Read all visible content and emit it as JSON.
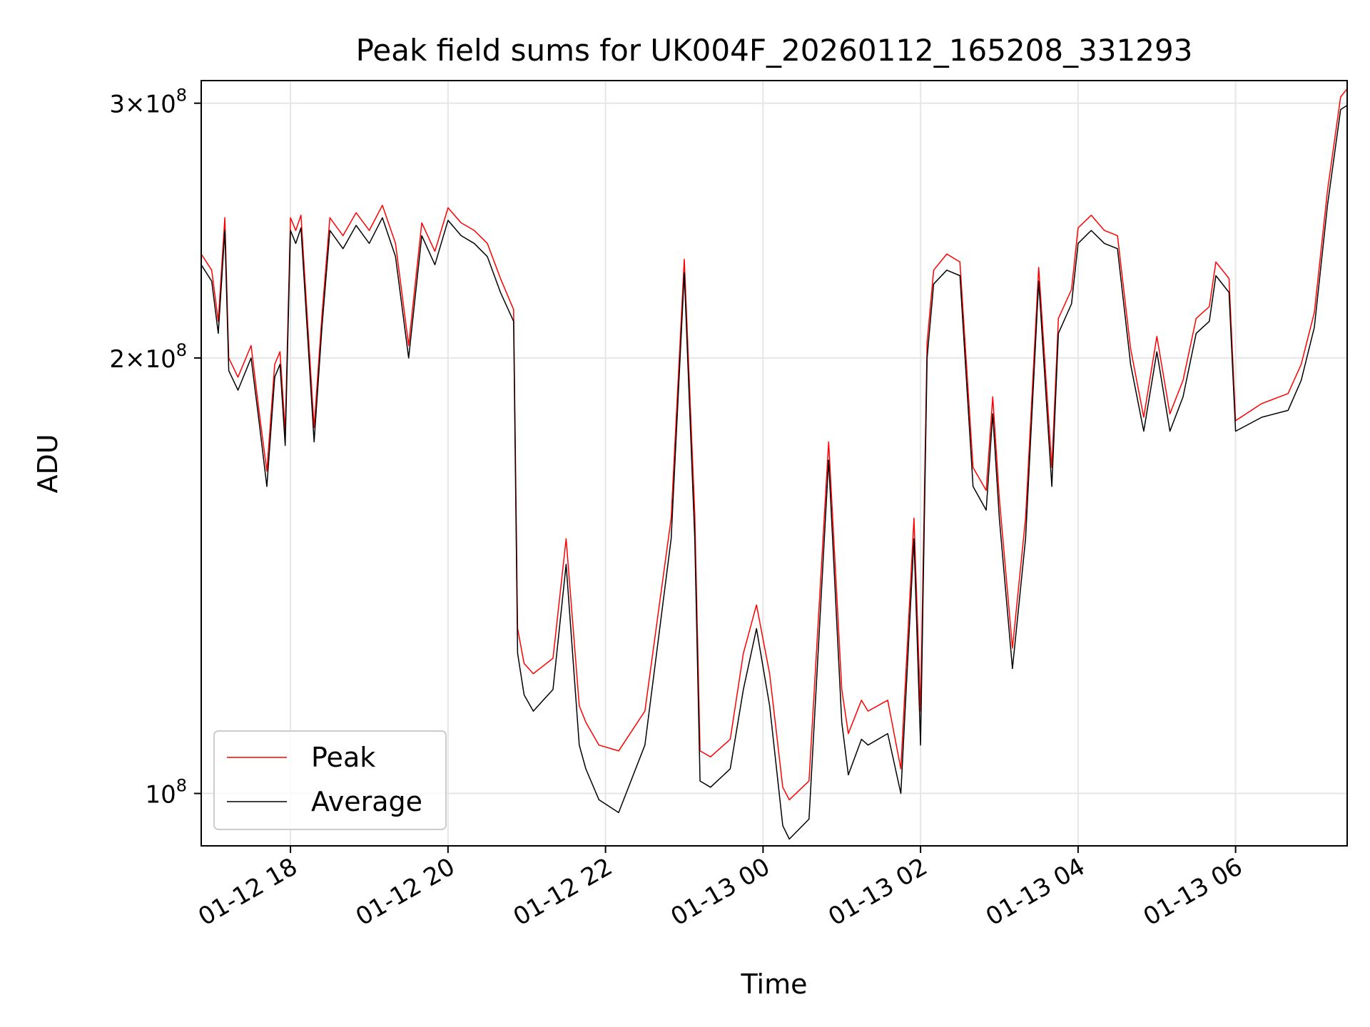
{
  "chart_data": {
    "type": "line",
    "title": "Peak field sums for UK004F_20260112_165208_331293",
    "xlabel": "Time",
    "ylabel": "ADU",
    "x_range": [
      "2026-01-12 16:52",
      "2026-01-13 07:25"
    ],
    "y_scale": "log",
    "y_range": [
      92000000,
      311000000
    ],
    "x_ticks": [
      {
        "label": "01-12 18",
        "value": "2026-01-12 18:00"
      },
      {
        "label": "01-12 20",
        "value": "2026-01-12 20:00"
      },
      {
        "label": "01-12 22",
        "value": "2026-01-12 22:00"
      },
      {
        "label": "01-13 00",
        "value": "2026-01-13 00:00"
      },
      {
        "label": "01-13 02",
        "value": "2026-01-13 02:00"
      },
      {
        "label": "01-13 04",
        "value": "2026-01-13 04:00"
      },
      {
        "label": "01-13 06",
        "value": "2026-01-13 06:00"
      }
    ],
    "y_ticks": [
      {
        "mantissa": "",
        "exponent": "8",
        "value": 100000000
      },
      {
        "mantissa": "2",
        "exponent": "8",
        "value": 200000000
      },
      {
        "mantissa": "3",
        "exponent": "8",
        "value": 300000000
      }
    ],
    "grid": true,
    "legend_position": "lower-left",
    "series": [
      {
        "name": "Peak",
        "color": "#ff0000"
      },
      {
        "name": "Average",
        "color": "#000000"
      }
    ],
    "x": [
      "2026-01-12 16:52",
      "2026-01-12 17:00",
      "2026-01-12 17:05",
      "2026-01-12 17:10",
      "2026-01-12 17:13",
      "2026-01-12 17:20",
      "2026-01-12 17:30",
      "2026-01-12 17:36",
      "2026-01-12 17:42",
      "2026-01-12 17:48",
      "2026-01-12 17:52",
      "2026-01-12 17:56",
      "2026-01-12 18:00",
      "2026-01-12 18:04",
      "2026-01-12 18:08",
      "2026-01-12 18:18",
      "2026-01-12 18:24",
      "2026-01-12 18:30",
      "2026-01-12 18:40",
      "2026-01-12 18:50",
      "2026-01-12 19:00",
      "2026-01-12 19:10",
      "2026-01-12 19:20",
      "2026-01-12 19:30",
      "2026-01-12 19:40",
      "2026-01-12 19:50",
      "2026-01-12 20:00",
      "2026-01-12 20:10",
      "2026-01-12 20:20",
      "2026-01-12 20:30",
      "2026-01-12 20:40",
      "2026-01-12 20:50",
      "2026-01-12 20:53",
      "2026-01-12 20:58",
      "2026-01-12 21:05",
      "2026-01-12 21:20",
      "2026-01-12 21:30",
      "2026-01-12 21:40",
      "2026-01-12 21:45",
      "2026-01-12 21:55",
      "2026-01-12 22:10",
      "2026-01-12 22:30",
      "2026-01-12 22:50",
      "2026-01-12 23:00",
      "2026-01-12 23:08",
      "2026-01-12 23:12",
      "2026-01-12 23:20",
      "2026-01-12 23:35",
      "2026-01-12 23:45",
      "2026-01-12 23:55",
      "2026-01-13 00:05",
      "2026-01-13 00:15",
      "2026-01-13 00:20",
      "2026-01-13 00:35",
      "2026-01-13 00:50",
      "2026-01-13 01:00",
      "2026-01-13 01:05",
      "2026-01-13 01:15",
      "2026-01-13 01:20",
      "2026-01-13 01:35",
      "2026-01-13 01:45",
      "2026-01-13 01:55",
      "2026-01-13 02:00",
      "2026-01-13 02:05",
      "2026-01-13 02:10",
      "2026-01-13 02:20",
      "2026-01-13 02:30",
      "2026-01-13 02:40",
      "2026-01-13 02:50",
      "2026-01-13 02:55",
      "2026-01-13 03:00",
      "2026-01-13 03:10",
      "2026-01-13 03:20",
      "2026-01-13 03:30",
      "2026-01-13 03:40",
      "2026-01-13 03:45",
      "2026-01-13 03:55",
      "2026-01-13 04:00",
      "2026-01-13 04:10",
      "2026-01-13 04:20",
      "2026-01-13 04:30",
      "2026-01-13 04:40",
      "2026-01-13 04:50",
      "2026-01-13 05:00",
      "2026-01-13 05:10",
      "2026-01-13 05:20",
      "2026-01-13 05:30",
      "2026-01-13 05:40",
      "2026-01-13 05:45",
      "2026-01-13 05:55",
      "2026-01-13 06:00",
      "2026-01-13 06:20",
      "2026-01-13 06:40",
      "2026-01-13 06:50",
      "2026-01-13 07:00",
      "2026-01-13 07:10",
      "2026-01-13 07:20",
      "2026-01-13 07:25"
    ],
    "average": [
      232000000,
      226000000,
      208000000,
      245000000,
      196000000,
      190000000,
      200000000,
      181000000,
      163000000,
      194000000,
      198000000,
      174000000,
      245000000,
      240000000,
      246000000,
      175000000,
      210000000,
      245000000,
      238000000,
      247000000,
      240000000,
      250000000,
      235000000,
      200000000,
      243000000,
      232000000,
      249000000,
      243000000,
      240000000,
      235000000,
      222000000,
      212000000,
      125000000,
      117000000,
      114000000,
      118000000,
      144000000,
      108000000,
      104000000,
      99000000,
      97000000,
      108000000,
      150000000,
      229000000,
      150000000,
      102000000,
      101000000,
      104000000,
      118000000,
      130000000,
      115000000,
      95000000,
      93000000,
      96000000,
      170000000,
      112000000,
      103000000,
      109000000,
      108000000,
      110000000,
      100000000,
      150000000,
      108000000,
      200000000,
      225000000,
      230000000,
      228000000,
      163000000,
      157000000,
      183000000,
      155000000,
      122000000,
      150000000,
      226000000,
      163000000,
      208000000,
      218000000,
      240000000,
      245000000,
      240000000,
      238000000,
      198000000,
      178000000,
      202000000,
      178000000,
      188000000,
      208000000,
      212000000,
      228000000,
      222000000,
      178000000,
      182000000,
      184000000,
      193000000,
      210000000,
      255000000,
      297000000,
      299000000
    ],
    "peak": [
      236000000,
      230000000,
      212000000,
      250000000,
      200000000,
      194000000,
      204000000,
      184000000,
      167000000,
      198000000,
      202000000,
      178000000,
      250000000,
      245000000,
      251000000,
      179000000,
      214000000,
      250000000,
      243000000,
      252000000,
      245000000,
      255000000,
      240000000,
      204000000,
      248000000,
      237000000,
      254000000,
      248000000,
      245000000,
      240000000,
      227000000,
      216000000,
      130000000,
      123000000,
      121000000,
      124000000,
      150000000,
      115000000,
      112000000,
      108000000,
      107000000,
      114000000,
      155000000,
      234000000,
      156000000,
      107000000,
      106000000,
      109000000,
      125000000,
      135000000,
      121000000,
      101000000,
      99000000,
      102000000,
      175000000,
      118000000,
      110000000,
      116000000,
      114000000,
      116000000,
      104000000,
      155000000,
      114000000,
      205000000,
      230000000,
      236000000,
      233000000,
      168000000,
      162000000,
      188000000,
      160000000,
      126000000,
      155000000,
      231000000,
      168000000,
      213000000,
      223000000,
      246000000,
      251000000,
      245000000,
      243000000,
      203000000,
      182000000,
      207000000,
      183000000,
      193000000,
      213000000,
      217000000,
      233000000,
      227000000,
      181000000,
      186000000,
      189000000,
      198000000,
      215000000,
      261000000,
      303000000,
      307000000
    ]
  }
}
